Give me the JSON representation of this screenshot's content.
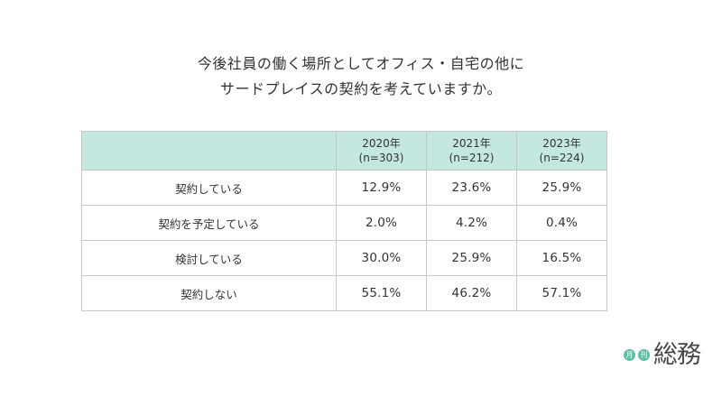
{
  "title": {
    "line1": "今後社員の働く場所としてオフィス・自宅の他に",
    "line2": "サードプレイスの契約を考えていますか。"
  },
  "table": {
    "columns": [
      {
        "year": "2020年",
        "n": "(n=303)"
      },
      {
        "year": "2021年",
        "n": "(n=212)"
      },
      {
        "year": "2023年",
        "n": "(n=224)"
      }
    ],
    "rows": [
      {
        "label": "契約している",
        "values": [
          "12.9%",
          "23.6%",
          "25.9%"
        ]
      },
      {
        "label": "契約を予定している",
        "values": [
          "2.0%",
          "4.2%",
          "0.4%"
        ]
      },
      {
        "label": "検討している",
        "values": [
          "30.0%",
          "25.9%",
          "16.5%"
        ]
      },
      {
        "label": "契約しない",
        "values": [
          "55.1%",
          "46.2%",
          "57.1%"
        ]
      }
    ]
  },
  "logo": {
    "badge1": "月",
    "badge2": "刊",
    "text": "総務",
    "badge_color": "#5bbfa6"
  },
  "colors": {
    "header_bg": "#c4e8df",
    "border": "#c8c8c8"
  }
}
